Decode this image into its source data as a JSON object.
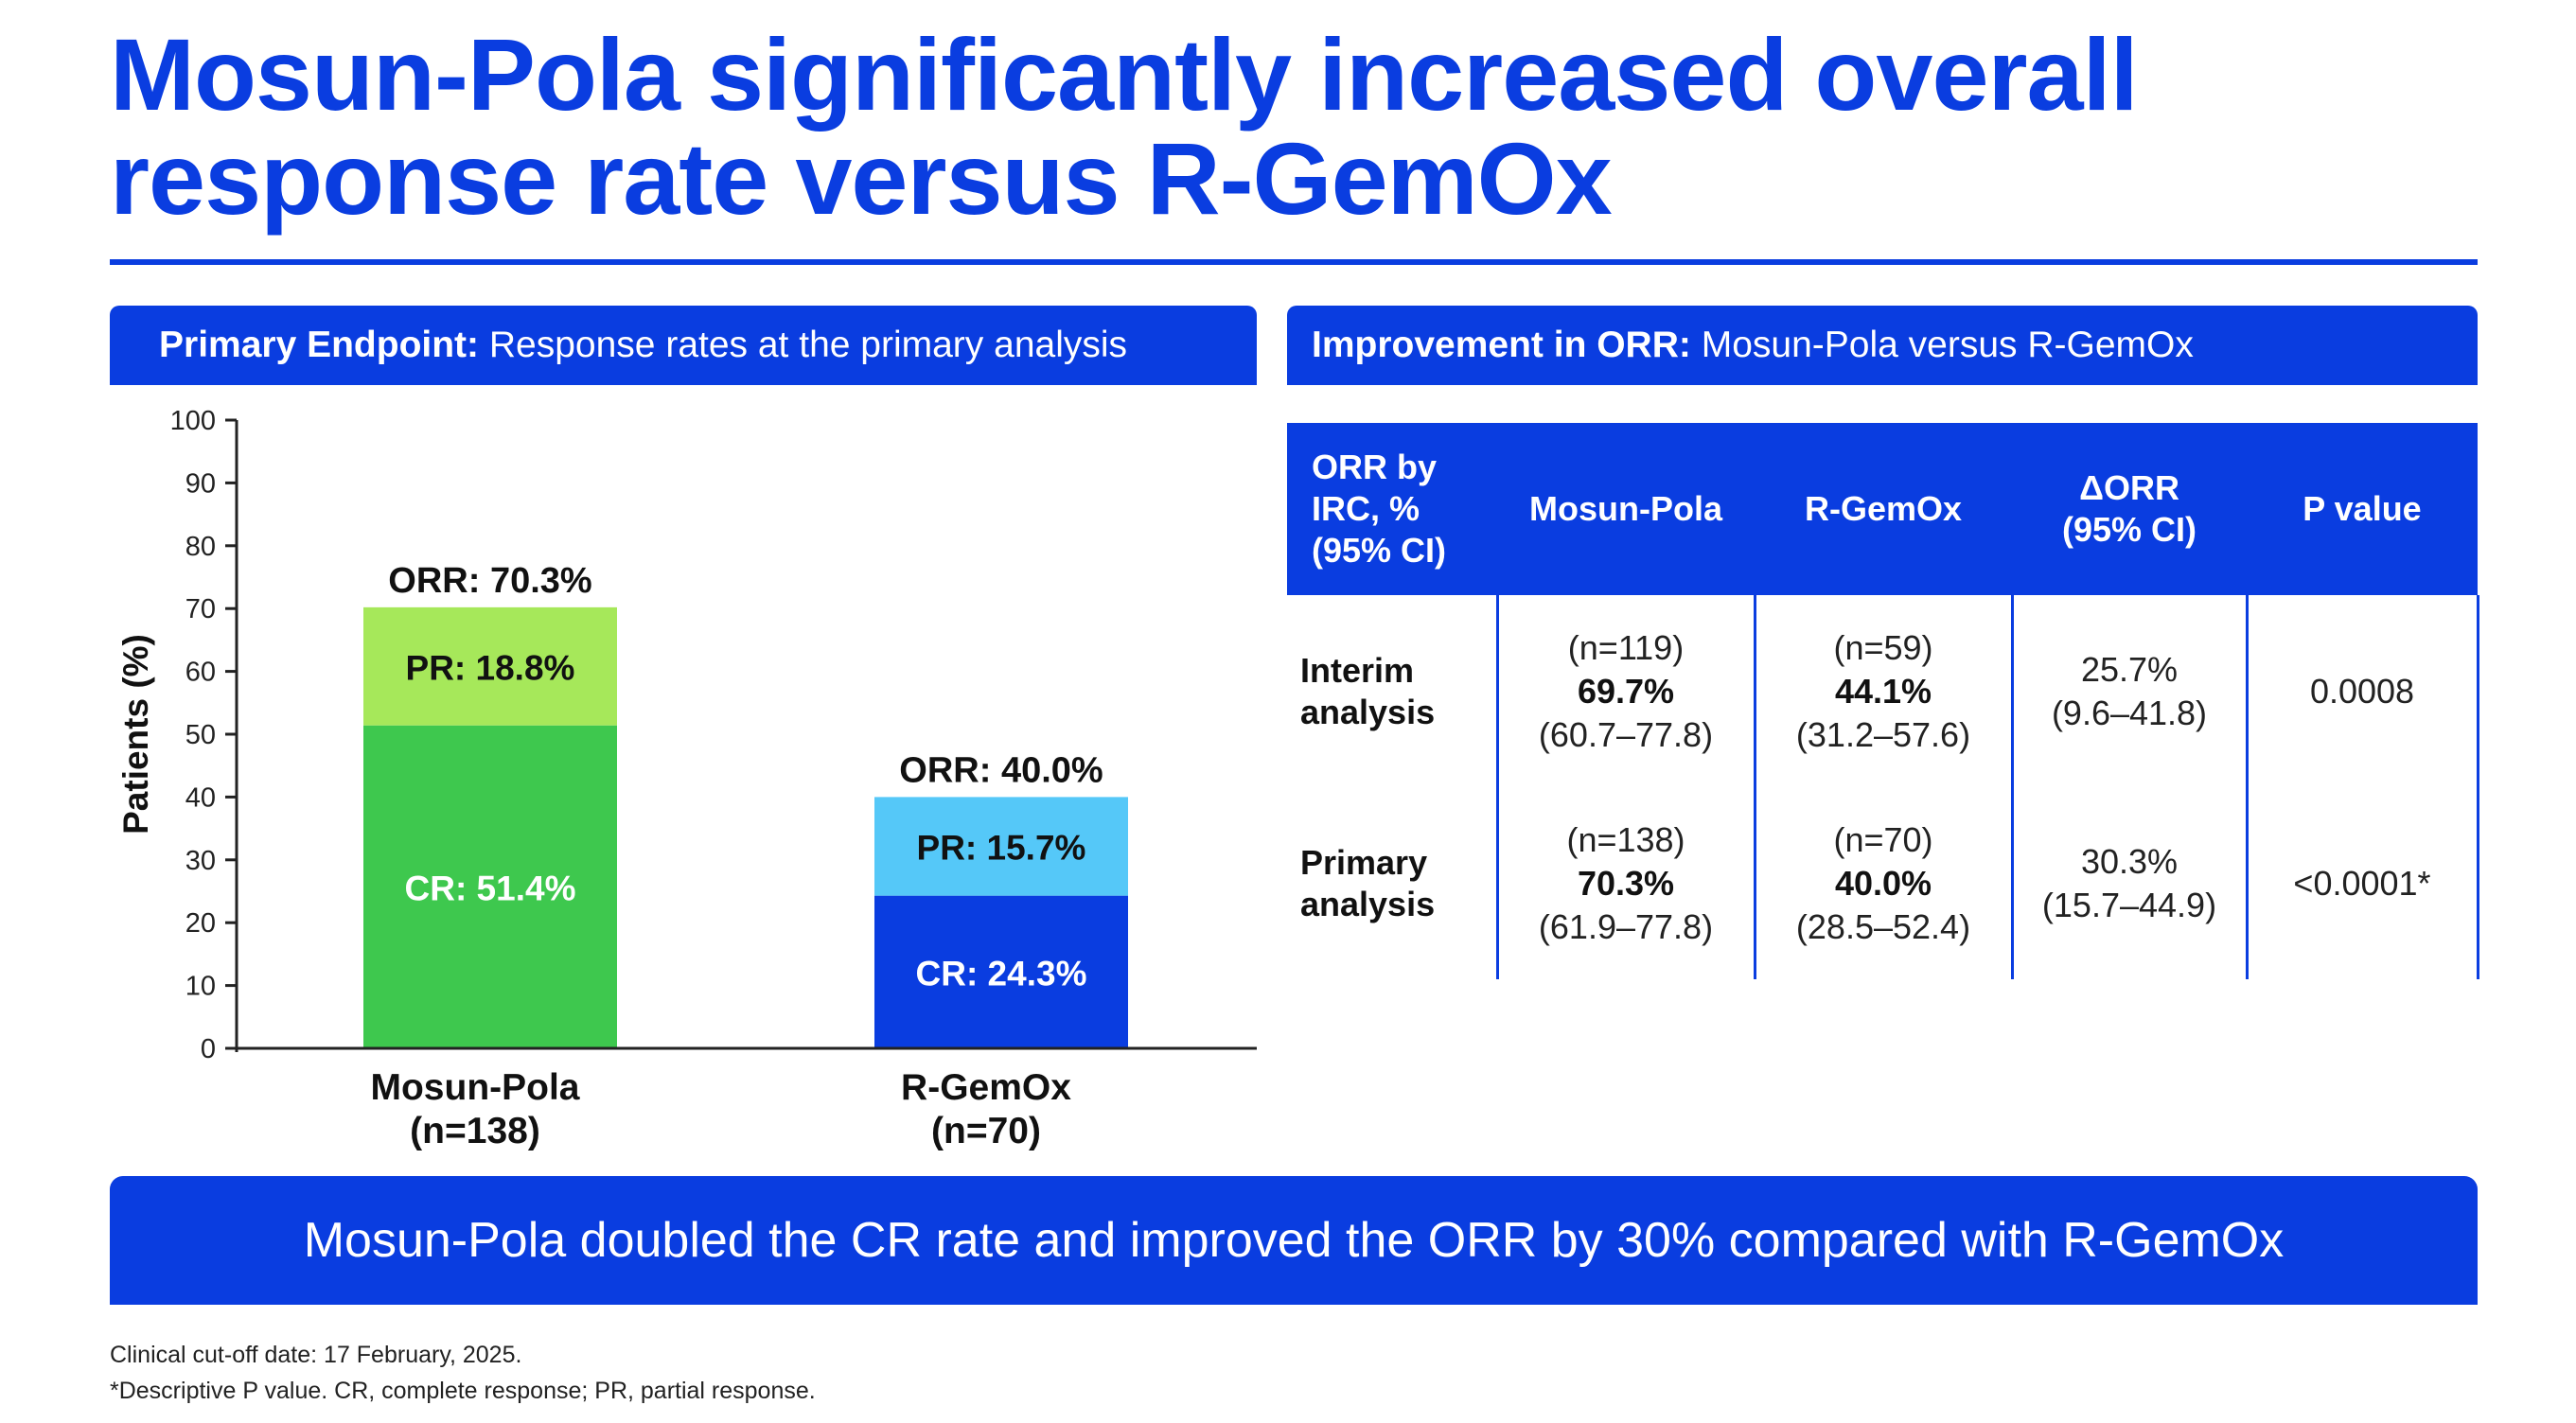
{
  "title": {
    "line1": "Mosun-Pola significantly increased overall",
    "line2": "response rate versus R-GemOx"
  },
  "left_panel": {
    "header_bold": "Primary Endpoint:",
    "header_rest": " Response rates at the primary analysis"
  },
  "right_panel": {
    "header_bold": "Improvement in ORR:",
    "header_rest": " Mosun-Pola versus R-GemOx"
  },
  "chart_data": {
    "type": "bar",
    "stacked": true,
    "ylabel": "Patients (%)",
    "ylim": [
      0,
      100
    ],
    "yticks": [
      0,
      10,
      20,
      30,
      40,
      50,
      60,
      70,
      80,
      90,
      100
    ],
    "categories": [
      {
        "name": "Mosun-Pola",
        "n": "(n=138)"
      },
      {
        "name": "R-GemOx",
        "n": "(n=70)"
      }
    ],
    "bars": [
      {
        "cr": 51.4,
        "pr": 18.8,
        "orr": 70.3,
        "cr_label": "CR: 51.4%",
        "pr_label": "PR: 18.8%",
        "orr_label": "ORR: 70.3%",
        "cr_color": "#3ec84e",
        "pr_color": "#a6e85a"
      },
      {
        "cr": 24.3,
        "pr": 15.7,
        "orr": 40.0,
        "cr_label": "CR: 24.3%",
        "pr_label": "PR: 15.7%",
        "orr_label": "ORR: 40.0%",
        "cr_color": "#0a3de0",
        "pr_color": "#55c8f8"
      }
    ]
  },
  "table": {
    "headers": [
      "ORR by IRC, % (95% CI)",
      "Mosun-Pola",
      "R-GemOx",
      "ΔORR (95% CI)",
      "P value"
    ],
    "header_lines": {
      "c0": [
        "ORR by",
        "IRC, %",
        "(95% CI)"
      ],
      "c3": [
        "ΔORR",
        "(95% CI)"
      ]
    },
    "rows": [
      {
        "label": [
          "Interim",
          "analysis"
        ],
        "mosun": {
          "n": "(n=119)",
          "value": "69.7%",
          "ci": "(60.7–77.8)"
        },
        "rgemox": {
          "n": "(n=59)",
          "value": "44.1%",
          "ci": "(31.2–57.6)"
        },
        "delta": {
          "value": "25.7%",
          "ci": "(9.6–41.8)"
        },
        "p": "0.0008"
      },
      {
        "label": [
          "Primary",
          "analysis"
        ],
        "mosun": {
          "n": "(n=138)",
          "value": "70.3%",
          "ci": "(61.9–77.8)"
        },
        "rgemox": {
          "n": "(n=70)",
          "value": "40.0%",
          "ci": "(28.5–52.4)"
        },
        "delta": {
          "value": "30.3%",
          "ci": "(15.7–44.9)"
        },
        "p": "<0.0001*"
      }
    ]
  },
  "banner": "Mosun-Pola doubled the CR rate and improved the ORR by 30% compared with R-GemOx",
  "footnotes": [
    "Clinical cut-off date: 17 February, 2025.",
    "*Descriptive P value. CR, complete response; PR, partial response."
  ],
  "colors": {
    "brand_blue": "#0a3de0"
  }
}
